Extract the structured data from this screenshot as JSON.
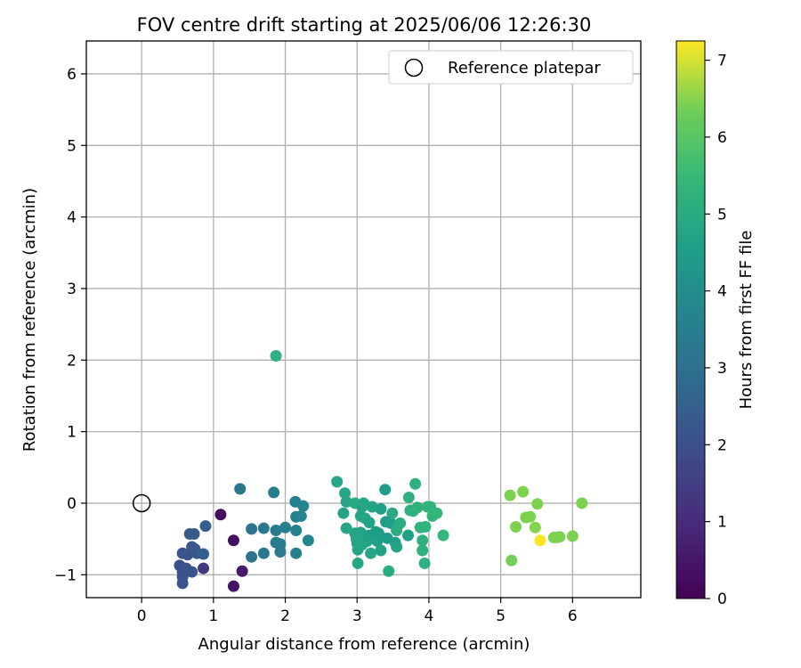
{
  "chart_data": {
    "type": "scatter",
    "title": "FOV centre drift starting at 2025/06/06 12:26:30",
    "xlabel": "Angular distance from reference (arcmin)",
    "ylabel": "Rotation from reference (arcmin)",
    "xlim": [
      -0.77,
      6.95
    ],
    "ylim": [
      -1.32,
      6.46
    ],
    "xticks": [
      0,
      1,
      2,
      3,
      4,
      5,
      6
    ],
    "yticks": [
      -1,
      0,
      1,
      2,
      3,
      4,
      5,
      6
    ],
    "grid": true,
    "legend": {
      "position": "upper-right",
      "entries": [
        "Reference platepar"
      ]
    },
    "reference_point": {
      "x": 0,
      "y": 0,
      "label": "Reference platepar"
    },
    "colorbar": {
      "label": "Hours from first FF file",
      "colormap": "viridis",
      "range": [
        0,
        7.25
      ],
      "ticks": [
        0,
        1,
        2,
        3,
        4,
        5,
        6,
        7
      ]
    },
    "points": [
      {
        "x": 1.1,
        "y": -0.16,
        "c": 0.2
      },
      {
        "x": 1.28,
        "y": -0.52,
        "c": 0.3
      },
      {
        "x": 1.4,
        "y": -0.95,
        "c": 0.5
      },
      {
        "x": 1.28,
        "y": -1.16,
        "c": 0.4
      },
      {
        "x": 0.86,
        "y": -0.91,
        "c": 1.2
      },
      {
        "x": 0.53,
        "y": -0.87,
        "c": 1.8
      },
      {
        "x": 0.57,
        "y": -0.96,
        "c": 1.8
      },
      {
        "x": 0.57,
        "y": -1.03,
        "c": 1.9
      },
      {
        "x": 0.57,
        "y": -1.12,
        "c": 1.9
      },
      {
        "x": 0.62,
        "y": -0.91,
        "c": 1.9
      },
      {
        "x": 0.64,
        "y": -0.72,
        "c": 1.8
      },
      {
        "x": 0.57,
        "y": -0.7,
        "c": 1.9
      },
      {
        "x": 0.7,
        "y": -0.96,
        "c": 1.9
      },
      {
        "x": 0.7,
        "y": -0.61,
        "c": 2.0
      },
      {
        "x": 0.74,
        "y": -0.64,
        "c": 2.0
      },
      {
        "x": 0.67,
        "y": -0.43,
        "c": 2.1
      },
      {
        "x": 0.73,
        "y": -0.43,
        "c": 2.1
      },
      {
        "x": 0.77,
        "y": -0.7,
        "c": 2.0
      },
      {
        "x": 0.86,
        "y": -0.71,
        "c": 2.2
      },
      {
        "x": 0.89,
        "y": -0.32,
        "c": 2.2
      },
      {
        "x": 1.37,
        "y": 0.2,
        "c": 2.9
      },
      {
        "x": 1.53,
        "y": -0.36,
        "c": 2.8
      },
      {
        "x": 1.53,
        "y": -0.75,
        "c": 2.8
      },
      {
        "x": 1.7,
        "y": -0.35,
        "c": 2.9
      },
      {
        "x": 1.7,
        "y": -0.7,
        "c": 2.9
      },
      {
        "x": 1.84,
        "y": 0.15,
        "c": 3.1
      },
      {
        "x": 1.87,
        "y": -0.55,
        "c": 3.0
      },
      {
        "x": 1.87,
        "y": -0.38,
        "c": 3.0
      },
      {
        "x": 1.93,
        "y": -0.57,
        "c": 3.0
      },
      {
        "x": 1.93,
        "y": -0.68,
        "c": 3.1
      },
      {
        "x": 2.0,
        "y": -0.34,
        "c": 3.1
      },
      {
        "x": 2.14,
        "y": 0.02,
        "c": 3.2
      },
      {
        "x": 2.15,
        "y": -0.19,
        "c": 3.2
      },
      {
        "x": 2.15,
        "y": -0.38,
        "c": 3.2
      },
      {
        "x": 2.15,
        "y": -0.7,
        "c": 3.2
      },
      {
        "x": 2.22,
        "y": -0.18,
        "c": 3.3
      },
      {
        "x": 2.25,
        "y": -0.04,
        "c": 3.3
      },
      {
        "x": 2.32,
        "y": -0.52,
        "c": 3.3
      },
      {
        "x": 1.87,
        "y": 2.06,
        "c": 4.6
      },
      {
        "x": 2.72,
        "y": 0.3,
        "c": 4.3
      },
      {
        "x": 2.81,
        "y": -0.14,
        "c": 4.2
      },
      {
        "x": 2.83,
        "y": 0.14,
        "c": 4.3
      },
      {
        "x": 2.85,
        "y": 0.02,
        "c": 4.3
      },
      {
        "x": 2.85,
        "y": -0.35,
        "c": 4.3
      },
      {
        "x": 2.97,
        "y": 0.0,
        "c": 4.4
      },
      {
        "x": 2.97,
        "y": -0.42,
        "c": 4.2
      },
      {
        "x": 2.99,
        "y": -0.5,
        "c": 4.3
      },
      {
        "x": 3.0,
        "y": -0.56,
        "c": 4.2
      },
      {
        "x": 3.01,
        "y": -0.65,
        "c": 4.3
      },
      {
        "x": 3.01,
        "y": -0.84,
        "c": 4.3
      },
      {
        "x": 3.05,
        "y": -0.41,
        "c": 4.2
      },
      {
        "x": 3.05,
        "y": -0.18,
        "c": 4.3
      },
      {
        "x": 3.07,
        "y": -0.05,
        "c": 4.2
      },
      {
        "x": 3.07,
        "y": -0.58,
        "c": 4.3
      },
      {
        "x": 3.09,
        "y": 0.0,
        "c": 4.3
      },
      {
        "x": 3.11,
        "y": -0.21,
        "c": 4.3
      },
      {
        "x": 3.14,
        "y": -0.53,
        "c": 4.2
      },
      {
        "x": 3.17,
        "y": -0.45,
        "c": 4.1
      },
      {
        "x": 3.17,
        "y": -0.27,
        "c": 4.2
      },
      {
        "x": 3.19,
        "y": -0.7,
        "c": 4.3
      },
      {
        "x": 3.21,
        "y": -0.05,
        "c": 4.2
      },
      {
        "x": 3.26,
        "y": -0.4,
        "c": 4.0
      },
      {
        "x": 3.28,
        "y": -0.53,
        "c": 4.1
      },
      {
        "x": 3.3,
        "y": -0.42,
        "c": 4.0
      },
      {
        "x": 3.33,
        "y": -0.08,
        "c": 4.1
      },
      {
        "x": 3.33,
        "y": -0.66,
        "c": 4.2
      },
      {
        "x": 3.39,
        "y": 0.19,
        "c": 4.0
      },
      {
        "x": 3.4,
        "y": -0.26,
        "c": 4.0
      },
      {
        "x": 3.42,
        "y": -0.49,
        "c": 3.9
      },
      {
        "x": 3.44,
        "y": -0.95,
        "c": 4.5
      },
      {
        "x": 3.47,
        "y": -0.28,
        "c": 4.1
      },
      {
        "x": 3.49,
        "y": -0.14,
        "c": 4.4
      },
      {
        "x": 3.53,
        "y": -0.55,
        "c": 4.1
      },
      {
        "x": 3.55,
        "y": -0.61,
        "c": 4.2
      },
      {
        "x": 3.55,
        "y": -0.38,
        "c": 4.5
      },
      {
        "x": 3.6,
        "y": -0.28,
        "c": 4.5
      },
      {
        "x": 3.71,
        "y": -0.45,
        "c": 4.1
      },
      {
        "x": 3.72,
        "y": 0.08,
        "c": 4.6
      },
      {
        "x": 3.74,
        "y": -0.1,
        "c": 4.6
      },
      {
        "x": 3.78,
        "y": -0.11,
        "c": 4.6
      },
      {
        "x": 3.81,
        "y": 0.27,
        "c": 4.6
      },
      {
        "x": 3.84,
        "y": -0.06,
        "c": 4.6
      },
      {
        "x": 3.88,
        "y": -0.34,
        "c": 4.7
      },
      {
        "x": 3.91,
        "y": -0.52,
        "c": 4.6
      },
      {
        "x": 3.91,
        "y": -0.66,
        "c": 4.6
      },
      {
        "x": 3.94,
        "y": -0.84,
        "c": 4.6
      },
      {
        "x": 3.95,
        "y": -0.33,
        "c": 4.7
      },
      {
        "x": 3.98,
        "y": -0.05,
        "c": 4.7
      },
      {
        "x": 4.02,
        "y": -0.05,
        "c": 4.7
      },
      {
        "x": 4.05,
        "y": -0.18,
        "c": 4.7
      },
      {
        "x": 4.11,
        "y": -0.14,
        "c": 4.8
      },
      {
        "x": 4.2,
        "y": -0.45,
        "c": 4.8
      },
      {
        "x": 5.13,
        "y": 0.11,
        "c": 5.8
      },
      {
        "x": 5.15,
        "y": -0.8,
        "c": 5.7
      },
      {
        "x": 5.21,
        "y": -0.33,
        "c": 5.8
      },
      {
        "x": 5.31,
        "y": 0.16,
        "c": 5.8
      },
      {
        "x": 5.35,
        "y": -0.2,
        "c": 5.8
      },
      {
        "x": 5.41,
        "y": -0.19,
        "c": 5.8
      },
      {
        "x": 5.48,
        "y": -0.34,
        "c": 5.9
      },
      {
        "x": 5.51,
        "y": -0.01,
        "c": 5.8
      },
      {
        "x": 5.55,
        "y": -0.52,
        "c": 7.2
      },
      {
        "x": 5.74,
        "y": -0.48,
        "c": 5.8
      },
      {
        "x": 5.78,
        "y": -0.48,
        "c": 5.8
      },
      {
        "x": 5.82,
        "y": -0.47,
        "c": 5.8
      },
      {
        "x": 6.0,
        "y": -0.46,
        "c": 5.8
      },
      {
        "x": 6.13,
        "y": 0.0,
        "c": 5.8
      }
    ]
  }
}
